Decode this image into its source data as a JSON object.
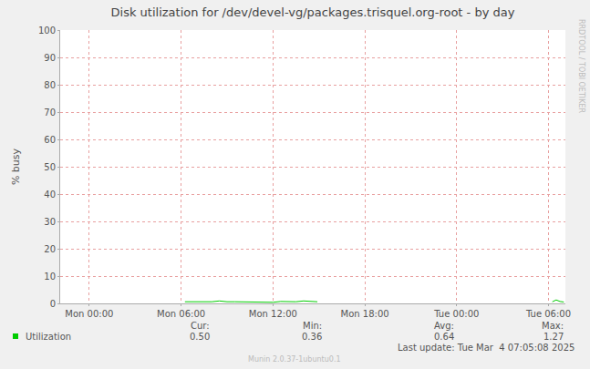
{
  "chart_data": {
    "type": "line",
    "title": "Disk utilization for /dev/devel-vg/packages.trisquel.org-root - by day",
    "y_label": "% busy",
    "x": [
      6.25,
      6.5,
      7,
      7.5,
      8,
      8.5,
      9,
      9.5,
      10,
      10.5,
      11,
      11.5,
      12,
      12.5,
      13,
      13.5,
      14,
      14.5,
      14.9,
      15.5,
      30.25,
      30.5,
      30.75,
      31
    ],
    "series": [
      {
        "name": "Utilization",
        "color": "#00cc00",
        "values": [
          0.6,
          0.6,
          0.6,
          0.6,
          0.6,
          0.9,
          0.6,
          0.6,
          0.6,
          0.55,
          0.5,
          0.6,
          0.4,
          0.7,
          0.6,
          0.6,
          0.9,
          0.6,
          0.6,
          null,
          0.6,
          1.27,
          0.7,
          0.5
        ]
      }
    ],
    "xlim": [
      -1.9,
      31.1
    ],
    "xticks": [
      {
        "value": 0,
        "label": "Mon 00:00"
      },
      {
        "value": 6,
        "label": "Mon 06:00"
      },
      {
        "value": 12,
        "label": "Mon 12:00"
      },
      {
        "value": 18,
        "label": "Mon 18:00"
      },
      {
        "value": 24,
        "label": "Tue 00:00"
      },
      {
        "value": 30,
        "label": "Tue 06:00"
      }
    ],
    "ylim": [
      0,
      100
    ],
    "yticks": [
      0,
      10,
      20,
      30,
      40,
      50,
      60,
      70,
      80,
      90,
      100
    ],
    "grid": true,
    "stats": {
      "headers": [
        "Cur:",
        "Min:",
        "Avg:",
        "Max:"
      ],
      "values": [
        "0.50",
        "0.36",
        "0.64",
        "1.27"
      ]
    },
    "last_update": "Last update: Tue Mar  4 07:05:08 2025",
    "footer": "Munin 2.0.37-1ubuntu0.1",
    "credit": "RRDTOOL / TOBI OETIKER"
  }
}
